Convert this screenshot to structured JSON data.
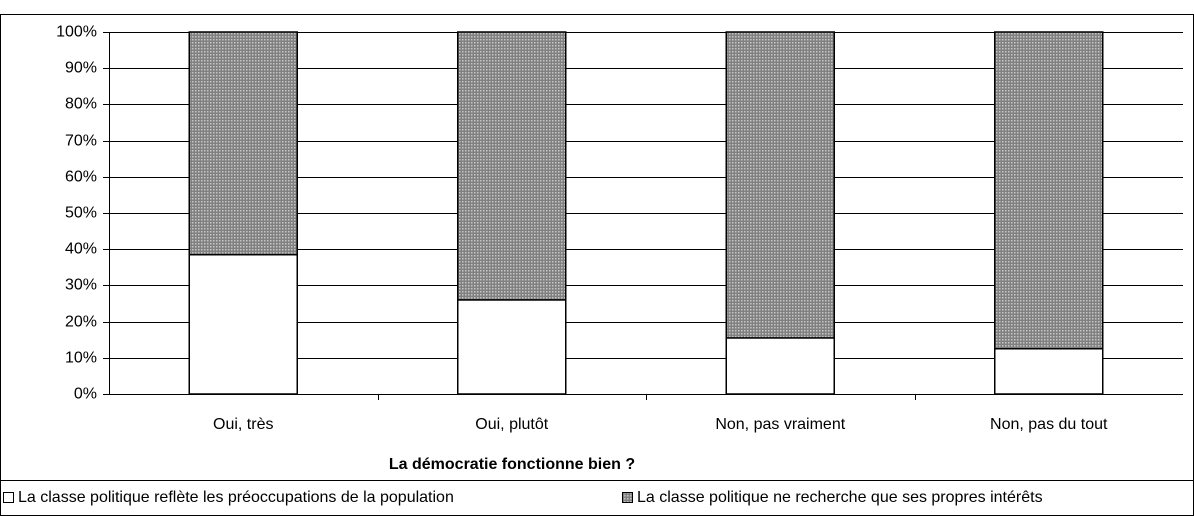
{
  "chart_data": {
    "type": "stacked_bar",
    "x_label": "La démocratie fonctionne bien ?",
    "categories": [
      "Oui, très",
      "Oui, plutôt",
      "Non, pas vraiment",
      "Non, pas du tout"
    ],
    "series": [
      {
        "name": "La classe politique reflète les préoccupations de la population",
        "color": "#ffffff",
        "values": [
          38.5,
          26,
          15.5,
          12.5
        ]
      },
      {
        "name": "La classe politique ne recherche que ses propres intérêts",
        "color": "#808080",
        "values": [
          61.5,
          74,
          84.5,
          87.5
        ]
      }
    ],
    "ylim": [
      0,
      100
    ],
    "yticks": [
      {
        "value": 0,
        "label": "0%"
      },
      {
        "value": 10,
        "label": "10%"
      },
      {
        "value": 20,
        "label": "20%"
      },
      {
        "value": 30,
        "label": "30%"
      },
      {
        "value": 40,
        "label": "40%"
      },
      {
        "value": 50,
        "label": "50%"
      },
      {
        "value": 60,
        "label": "60%"
      },
      {
        "value": 70,
        "label": "70%"
      },
      {
        "value": 80,
        "label": "80%"
      },
      {
        "value": 90,
        "label": "90%"
      },
      {
        "value": 100,
        "label": "100%"
      }
    ],
    "grid": true,
    "legend": "bottom"
  }
}
